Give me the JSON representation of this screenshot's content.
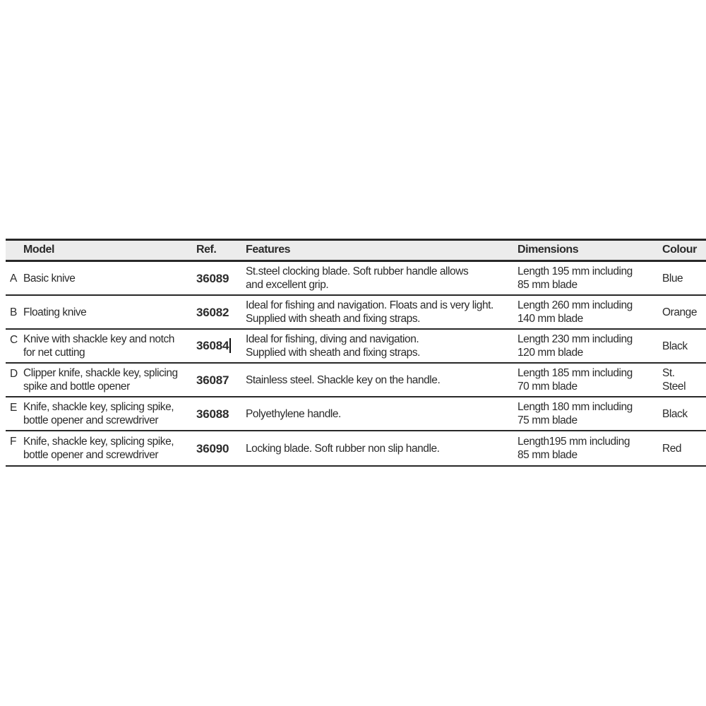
{
  "page": {
    "background_color": "#ffffff"
  },
  "table": {
    "colors": {
      "header_background": "#ececec",
      "border": "#282828",
      "text": "#2b2b2b"
    },
    "headers": {
      "model": "Model",
      "ref": "Ref.",
      "features": "Features",
      "dimensions": "Dimensions",
      "colour": "Colour"
    },
    "text_cursor": {
      "visible": true,
      "location": "after ref value of row C (36084)"
    },
    "rows": [
      {
        "letter": "A",
        "model": "Basic knive",
        "ref": "36089",
        "features": "St.steel clocking blade. Soft rubber handle allows\nand excellent grip.",
        "dimensions": "Length 195 mm including\n85 mm blade",
        "colour": "Blue"
      },
      {
        "letter": "B",
        "model": "Floating knive",
        "ref": "36082",
        "features": "Ideal for fishing and navigation. Floats and is very light.\nSupplied with sheath and fixing straps.",
        "dimensions": "Length 260 mm including\n140 mm blade",
        "colour": "Orange"
      },
      {
        "letter": "C",
        "model": "Knive with shackle key and notch\nfor net cutting",
        "ref": "36084",
        "features": "Ideal for fishing, diving and navigation.\nSupplied with sheath and fixing straps.",
        "dimensions": "Length 230 mm including\n120 mm blade",
        "colour": "Black"
      },
      {
        "letter": "D",
        "model": "Clipper knife, shackle key, splicing\nspike and bottle opener",
        "ref": "36087",
        "features": "Stainless steel. Shackle key on the handle.",
        "dimensions": "Length 185 mm including\n70 mm blade",
        "colour": "St.\nSteel"
      },
      {
        "letter": "E",
        "model": "Knife, shackle key, splicing spike,\nbottle opener and screwdriver",
        "ref": "36088",
        "features": "Polyethylene handle.",
        "dimensions": "Length 180 mm including\n75 mm blade",
        "colour": "Black"
      },
      {
        "letter": "F",
        "model": "Knife, shackle key, splicing spike,\nbottle opener and screwdriver",
        "ref": "36090",
        "features": "Locking blade. Soft rubber non slip handle.",
        "dimensions": "Length195 mm including\n85 mm blade",
        "colour": "Red"
      }
    ]
  }
}
